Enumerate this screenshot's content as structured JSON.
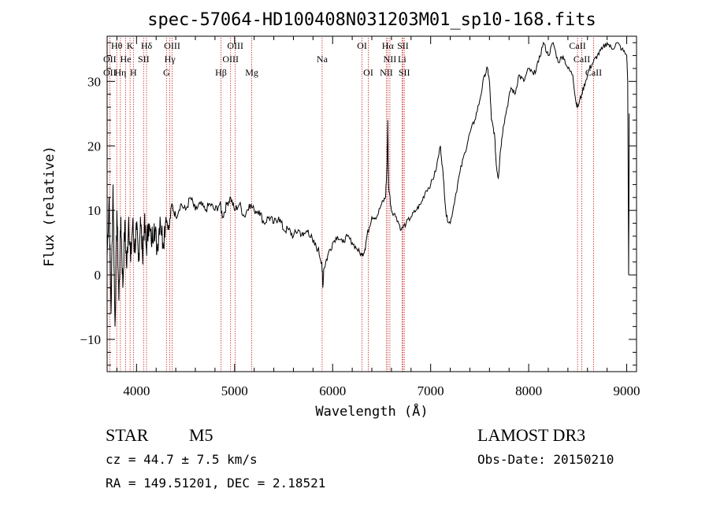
{
  "chart_data": {
    "type": "line",
    "title": "spec-57064-HD100408N031203M01_sp10-168.fits",
    "xlabel": "Wavelength (Å)",
    "ylabel": "Flux (relative)",
    "xlim": [
      3700,
      9100
    ],
    "ylim": [
      -15,
      37
    ],
    "x_ticks": [
      {
        "value": 4000,
        "label": "4000"
      },
      {
        "value": 5000,
        "label": "5000"
      },
      {
        "value": 6000,
        "label": "6000"
      },
      {
        "value": 7000,
        "label": "7000"
      },
      {
        "value": 8000,
        "label": "8000"
      },
      {
        "value": 9000,
        "label": "9000"
      }
    ],
    "y_ticks": [
      {
        "value": -10,
        "label": "−10"
      },
      {
        "value": 0,
        "label": "0"
      },
      {
        "value": 10,
        "label": "10"
      },
      {
        "value": 20,
        "label": "20"
      },
      {
        "value": 30,
        "label": "30"
      }
    ],
    "series": [
      {
        "name": "flux",
        "color": "#000000",
        "points": [
          [
            3700,
            3
          ],
          [
            3720,
            12
          ],
          [
            3740,
            -6
          ],
          [
            3760,
            14
          ],
          [
            3780,
            -8
          ],
          [
            3800,
            10
          ],
          [
            3820,
            -4
          ],
          [
            3840,
            9
          ],
          [
            3860,
            -2
          ],
          [
            3880,
            8
          ],
          [
            3900,
            1
          ],
          [
            3920,
            9
          ],
          [
            3940,
            2
          ],
          [
            3960,
            8
          ],
          [
            3980,
            4
          ],
          [
            4000,
            7
          ],
          [
            4020,
            2
          ],
          [
            4040,
            9
          ],
          [
            4060,
            3
          ],
          [
            4080,
            8
          ],
          [
            4100,
            4
          ],
          [
            4120,
            8
          ],
          [
            4150,
            5
          ],
          [
            4180,
            8
          ],
          [
            4210,
            4
          ],
          [
            4240,
            9
          ],
          [
            4270,
            5
          ],
          [
            4300,
            9
          ],
          [
            4330,
            7
          ],
          [
            4360,
            11
          ],
          [
            4400,
            9
          ],
          [
            4450,
            11
          ],
          [
            4500,
            10
          ],
          [
            4550,
            12
          ],
          [
            4600,
            10
          ],
          [
            4650,
            11
          ],
          [
            4700,
            10
          ],
          [
            4750,
            11
          ],
          [
            4800,
            10
          ],
          [
            4850,
            11
          ],
          [
            4880,
            9
          ],
          [
            4920,
            11
          ],
          [
            4960,
            12
          ],
          [
            5000,
            10
          ],
          [
            5050,
            11
          ],
          [
            5100,
            9
          ],
          [
            5150,
            11
          ],
          [
            5200,
            10
          ],
          [
            5250,
            10
          ],
          [
            5300,
            8
          ],
          [
            5350,
            9
          ],
          [
            5400,
            8
          ],
          [
            5450,
            9
          ],
          [
            5500,
            7
          ],
          [
            5550,
            7
          ],
          [
            5600,
            6
          ],
          [
            5650,
            7
          ],
          [
            5700,
            6
          ],
          [
            5750,
            7
          ],
          [
            5800,
            5
          ],
          [
            5850,
            4
          ],
          [
            5890,
            2
          ],
          [
            5900,
            -2
          ],
          [
            5910,
            1
          ],
          [
            5950,
            3
          ],
          [
            6000,
            5
          ],
          [
            6050,
            6
          ],
          [
            6100,
            5
          ],
          [
            6150,
            6
          ],
          [
            6200,
            5
          ],
          [
            6250,
            4
          ],
          [
            6300,
            3
          ],
          [
            6330,
            4
          ],
          [
            6350,
            6
          ],
          [
            6400,
            9
          ],
          [
            6450,
            9
          ],
          [
            6500,
            11
          ],
          [
            6540,
            12
          ],
          [
            6555,
            17
          ],
          [
            6563,
            24
          ],
          [
            6570,
            14
          ],
          [
            6600,
            10
          ],
          [
            6650,
            9
          ],
          [
            6700,
            7
          ],
          [
            6750,
            8
          ],
          [
            6800,
            9
          ],
          [
            6850,
            10
          ],
          [
            6900,
            11
          ],
          [
            6950,
            13
          ],
          [
            7000,
            14
          ],
          [
            7050,
            16
          ],
          [
            7100,
            20
          ],
          [
            7130,
            15
          ],
          [
            7160,
            9
          ],
          [
            7200,
            8
          ],
          [
            7250,
            12
          ],
          [
            7300,
            16
          ],
          [
            7350,
            19
          ],
          [
            7400,
            22
          ],
          [
            7450,
            24
          ],
          [
            7500,
            27
          ],
          [
            7550,
            31
          ],
          [
            7580,
            32
          ],
          [
            7600,
            30
          ],
          [
            7620,
            24
          ],
          [
            7650,
            22
          ],
          [
            7670,
            17
          ],
          [
            7690,
            15
          ],
          [
            7710,
            19
          ],
          [
            7740,
            23
          ],
          [
            7780,
            26
          ],
          [
            7820,
            29
          ],
          [
            7860,
            28
          ],
          [
            7900,
            31
          ],
          [
            7950,
            30
          ],
          [
            8000,
            32
          ],
          [
            8050,
            31
          ],
          [
            8100,
            33
          ],
          [
            8150,
            36
          ],
          [
            8200,
            34
          ],
          [
            8250,
            36
          ],
          [
            8300,
            33
          ],
          [
            8350,
            34
          ],
          [
            8400,
            32
          ],
          [
            8450,
            31
          ],
          [
            8480,
            27
          ],
          [
            8500,
            26
          ],
          [
            8540,
            28
          ],
          [
            8580,
            30
          ],
          [
            8620,
            32
          ],
          [
            8660,
            33
          ],
          [
            8700,
            34
          ],
          [
            8750,
            35
          ],
          [
            8800,
            36
          ],
          [
            8850,
            35
          ],
          [
            8900,
            36
          ],
          [
            8950,
            35
          ],
          [
            9000,
            34
          ],
          [
            9010,
            30
          ],
          [
            9020,
            0
          ],
          [
            9025,
            25
          ]
        ]
      }
    ],
    "spectral_lines": [
      {
        "label": "Hθ",
        "x": 3798,
        "row": 0
      },
      {
        "label": "K",
        "x": 3934,
        "row": 0
      },
      {
        "label": "Hδ",
        "x": 4102,
        "row": 0
      },
      {
        "label": "OIII",
        "x": 4363,
        "row": 0
      },
      {
        "label": "OIII",
        "x": 5007,
        "row": 0
      },
      {
        "label": "OI",
        "x": 6300,
        "row": 0
      },
      {
        "label": "Hα",
        "x": 6563,
        "row": 0
      },
      {
        "label": "SII",
        "x": 6717,
        "row": 0
      },
      {
        "label": "CaII",
        "x": 8498,
        "row": 0
      },
      {
        "label": "OII",
        "x": 3727,
        "row": 1
      },
      {
        "label": "He",
        "x": 3889,
        "row": 1
      },
      {
        "label": "SII",
        "x": 4072,
        "row": 1
      },
      {
        "label": "Hγ",
        "x": 4340,
        "row": 1
      },
      {
        "label": "OIII",
        "x": 4959,
        "row": 1
      },
      {
        "label": "Na",
        "x": 5893,
        "row": 1
      },
      {
        "label": "NII",
        "x": 6584,
        "row": 1
      },
      {
        "label": "Li",
        "x": 6708,
        "row": 1
      },
      {
        "label": "CaII",
        "x": 8542,
        "row": 1
      },
      {
        "label": "OII",
        "x": 3727,
        "row": 2
      },
      {
        "label": "Hη",
        "x": 3835,
        "row": 2
      },
      {
        "label": "H",
        "x": 3968,
        "row": 2
      },
      {
        "label": "G",
        "x": 4305,
        "row": 2
      },
      {
        "label": "Hβ",
        "x": 4861,
        "row": 2
      },
      {
        "label": "Mg",
        "x": 5175,
        "row": 2
      },
      {
        "label": "OI",
        "x": 6364,
        "row": 2
      },
      {
        "label": "NII",
        "x": 6548,
        "row": 2
      },
      {
        "label": "SII",
        "x": 6731,
        "row": 2
      },
      {
        "label": "CaII",
        "x": 8662,
        "row": 2
      }
    ]
  },
  "info": {
    "object_class": "STAR",
    "subclass": "M5",
    "survey": "LAMOST DR3",
    "redshift": "cz = 44.7 ± 7.5 km/s",
    "obs_date": "Obs-Date: 20150210",
    "coords": "RA = 149.51201, DEC =   2.18521"
  }
}
